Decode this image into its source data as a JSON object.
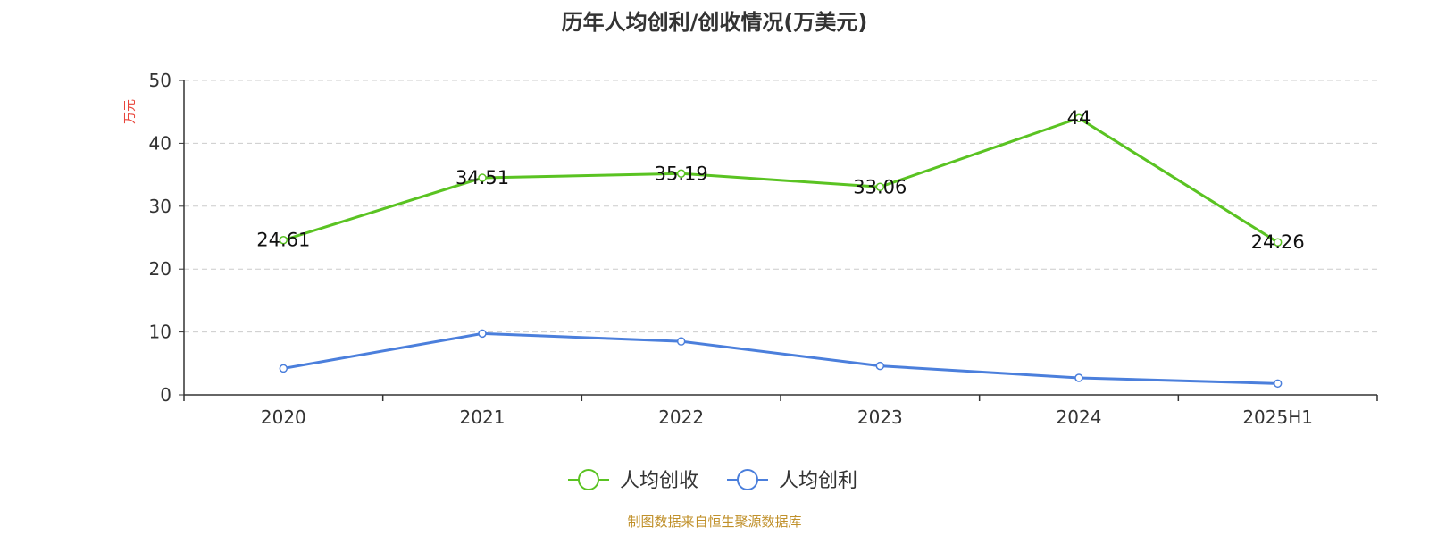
{
  "chart_data": {
    "type": "line",
    "title": "历年人均创利/创收情况(万美元)",
    "ylabel": "万元",
    "ylim": [
      0,
      50
    ],
    "yticks": [
      "0",
      "10",
      "20",
      "30",
      "40",
      "50"
    ],
    "categories": [
      "2020",
      "2021",
      "2022",
      "2023",
      "2024",
      "2025H1"
    ],
    "grid": true,
    "legend_position": "bottom",
    "series": [
      {
        "name": "人均创收",
        "color": "#5ac322",
        "values": [
          24.61,
          34.51,
          35.19,
          33.06,
          44,
          24.26
        ],
        "labels": [
          "24.61",
          "34.51",
          "35.19",
          "33.06",
          "44",
          "24.26"
        ]
      },
      {
        "name": "人均创利",
        "color": "#4b7fdc",
        "values": [
          4.2,
          9.75,
          8.5,
          4.6,
          2.7,
          1.8
        ]
      }
    ]
  },
  "colors": {
    "ylabel": "#e8443a",
    "source": "#c0902a",
    "axis": "#333333",
    "grid": "#cccccc"
  },
  "footer": {
    "source": "制图数据来自恒生聚源数据库"
  }
}
